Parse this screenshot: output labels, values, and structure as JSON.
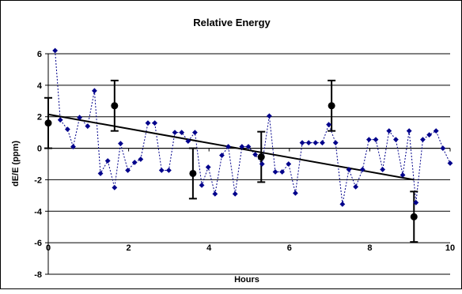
{
  "chart_data": {
    "type": "scatter",
    "title": "Relative Energy",
    "xlabel": "Hours",
    "ylabel": "dE/E (ppm)",
    "xlim": [
      0,
      10
    ],
    "ylim": [
      -8,
      6
    ],
    "x_ticks": [
      0,
      2,
      4,
      6,
      8,
      10
    ],
    "y_ticks": [
      -8,
      -6,
      -4,
      -2,
      0,
      2,
      4,
      6
    ],
    "grid": "horizontal",
    "legend": "none",
    "colors": {
      "points": "#00008b",
      "line": "#00008b",
      "trend": "#000000",
      "markers": "#000000"
    },
    "series": [
      {
        "style": "diamond-markers-dotted-line",
        "points": [
          [
            0.17,
            6.2
          ],
          [
            0.3,
            1.8
          ],
          [
            0.48,
            1.2
          ],
          [
            0.62,
            0.1
          ],
          [
            0.78,
            1.95
          ],
          [
            0.98,
            1.4
          ],
          [
            1.15,
            3.65
          ],
          [
            1.3,
            -1.6
          ],
          [
            1.48,
            -0.8
          ],
          [
            1.65,
            -2.5
          ],
          [
            1.8,
            0.3
          ],
          [
            1.98,
            -1.4
          ],
          [
            2.15,
            -0.9
          ],
          [
            2.3,
            -0.7
          ],
          [
            2.48,
            1.6
          ],
          [
            2.65,
            1.6
          ],
          [
            2.82,
            -1.4
          ],
          [
            3.0,
            -1.4
          ],
          [
            3.15,
            1.0
          ],
          [
            3.32,
            1.0
          ],
          [
            3.48,
            0.45
          ],
          [
            3.65,
            1.0
          ],
          [
            3.82,
            -2.35
          ],
          [
            3.98,
            -1.2
          ],
          [
            4.15,
            -2.9
          ],
          [
            4.32,
            -0.45
          ],
          [
            4.48,
            0.1
          ],
          [
            4.65,
            -2.9
          ],
          [
            4.82,
            0.1
          ],
          [
            4.98,
            0.1
          ],
          [
            5.15,
            -0.4
          ],
          [
            5.32,
            -1.0
          ],
          [
            5.5,
            2.05
          ],
          [
            5.65,
            -1.5
          ],
          [
            5.82,
            -1.5
          ],
          [
            5.98,
            -1.0
          ],
          [
            6.15,
            -2.85
          ],
          [
            6.32,
            0.35
          ],
          [
            6.48,
            0.35
          ],
          [
            6.65,
            0.35
          ],
          [
            6.82,
            0.35
          ],
          [
            6.98,
            1.5
          ],
          [
            7.15,
            0.35
          ],
          [
            7.32,
            -3.55
          ],
          [
            7.48,
            -1.35
          ],
          [
            7.65,
            -2.45
          ],
          [
            7.82,
            -1.35
          ],
          [
            7.98,
            0.55
          ],
          [
            8.15,
            0.55
          ],
          [
            8.32,
            -1.35
          ],
          [
            8.48,
            1.1
          ],
          [
            8.65,
            0.55
          ],
          [
            8.82,
            -1.7
          ],
          [
            8.98,
            1.1
          ],
          [
            9.15,
            -3.45
          ],
          [
            9.32,
            0.55
          ],
          [
            9.48,
            0.85
          ],
          [
            9.65,
            1.1
          ],
          [
            9.82,
            0.0
          ],
          [
            10.0,
            -0.95
          ]
        ]
      },
      {
        "style": "circles-with-error-bars",
        "points": [
          {
            "x": 0.0,
            "y": 1.6,
            "err": 1.6
          },
          {
            "x": 1.65,
            "y": 2.7,
            "err": 1.6
          },
          {
            "x": 3.6,
            "y": -1.6,
            "err": 1.6
          },
          {
            "x": 5.3,
            "y": -0.55,
            "err": 1.6
          },
          {
            "x": 7.05,
            "y": 2.7,
            "err": 1.6
          },
          {
            "x": 9.1,
            "y": -4.35,
            "err": 1.6
          }
        ]
      }
    ],
    "trendline": {
      "x": [
        0.0,
        9.1
      ],
      "y": [
        2.15,
        -2.0
      ]
    }
  }
}
